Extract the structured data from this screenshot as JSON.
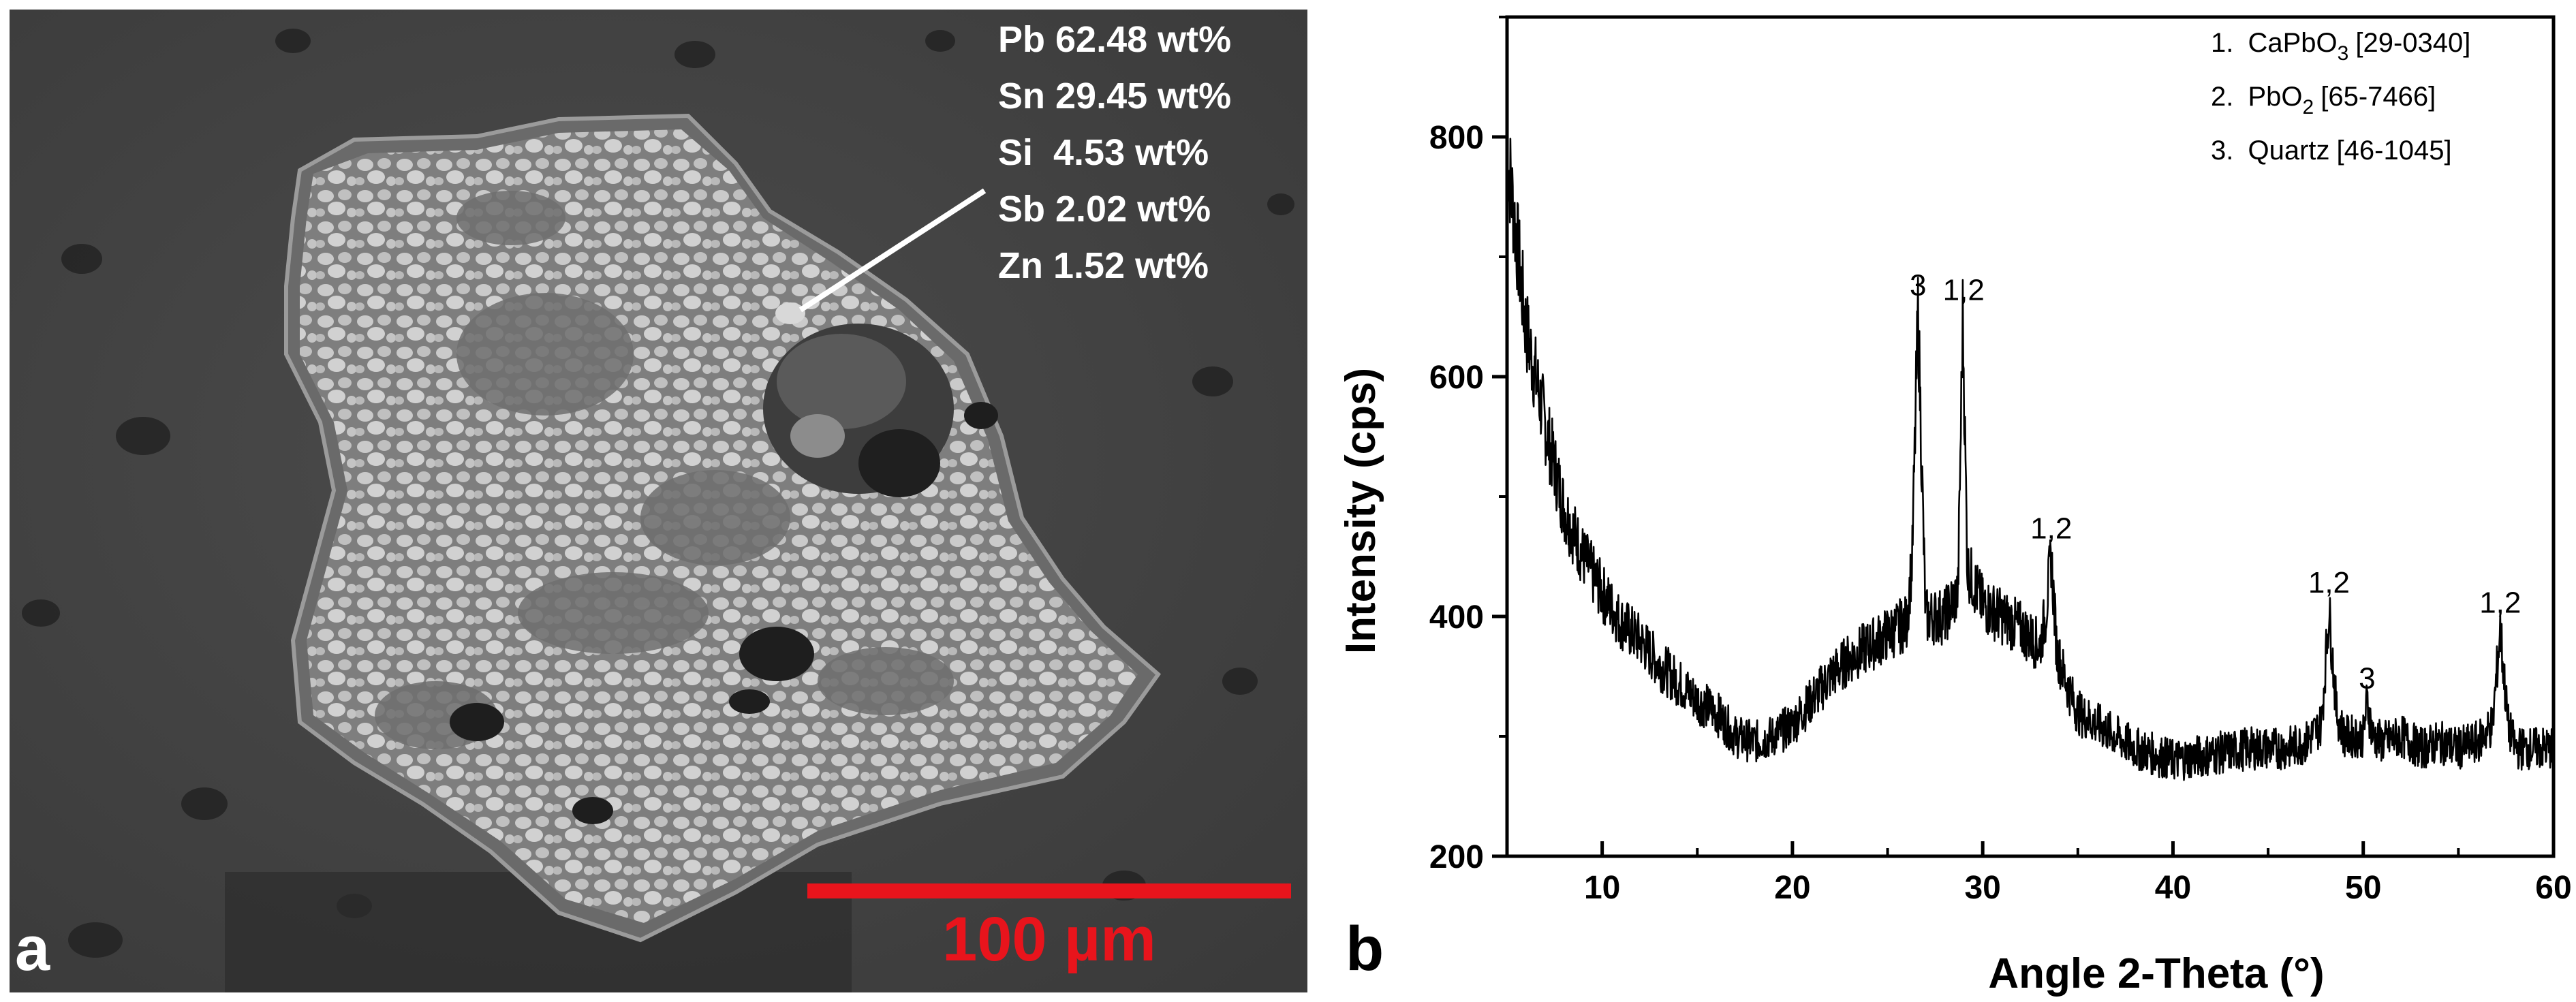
{
  "panel_a": {
    "letter": "a",
    "composition": [
      {
        "text": "Pb 62.48 wt%"
      },
      {
        "text": "Sn 29.45 wt%"
      },
      {
        "text": "Si  4.53 wt%"
      },
      {
        "text": "Sb 2.02 wt%"
      },
      {
        "text": "Zn 1.52 wt%"
      }
    ],
    "scale_bar_label": "100 µm",
    "scale_bar_color": "#e8141c"
  },
  "panel_b": {
    "letter": "b"
  },
  "chart_data": {
    "type": "line",
    "xlabel": "Angle 2-Theta (°)",
    "ylabel": "Intensity (cps)",
    "xlim": [
      5,
      60
    ],
    "ylim": [
      200,
      900
    ],
    "xticks": [
      10,
      20,
      30,
      40,
      50,
      60
    ],
    "yticks": [
      200,
      400,
      600,
      800
    ],
    "grid": false,
    "legend_position": "top-right",
    "legend": [
      {
        "number": "1.",
        "name": "CaPbO",
        "sub": "3",
        "ref": "[29-0340]"
      },
      {
        "number": "2.",
        "name": "PbO",
        "sub": "2",
        "ref": "[65-7466]"
      },
      {
        "number": "3.",
        "name": "Quartz",
        "sub": "",
        "ref": "[46-1045]"
      }
    ],
    "series": [
      {
        "x": [
          5,
          6,
          7,
          8,
          9,
          10,
          11,
          12,
          13,
          14,
          15,
          16,
          17,
          18,
          19,
          20,
          21,
          22,
          23,
          24,
          25,
          26,
          26.3,
          26.6,
          26.9,
          27,
          28,
          28.7,
          28.95,
          29.2,
          30,
          31,
          32,
          33,
          33.3,
          33.6,
          33.9,
          34.5,
          35,
          36,
          37,
          38,
          39,
          40,
          42,
          44,
          46,
          47,
          47.8,
          48.2,
          48.6,
          49,
          50,
          50.2,
          50.5,
          51,
          52,
          53,
          54,
          55,
          56,
          56.8,
          57.2,
          57.6,
          58,
          59,
          60
        ],
        "y": [
          790,
          640,
          560,
          490,
          450,
          420,
          395,
          380,
          360,
          345,
          330,
          320,
          300,
          295,
          300,
          310,
          330,
          350,
          365,
          375,
          385,
          395,
          450,
          655,
          460,
          400,
          400,
          420,
          650,
          440,
          410,
          400,
          390,
          375,
          400,
          450,
          370,
          340,
          320,
          310,
          300,
          290,
          285,
          280,
          285,
          290,
          290,
          295,
          310,
          405,
          320,
          300,
          300,
          330,
          300,
          295,
          300,
          290,
          295,
          290,
          295,
          310,
          390,
          310,
          290,
          290,
          290
        ]
      }
    ],
    "peak_labels": [
      {
        "label": "3",
        "x": 26.6,
        "y": 668
      },
      {
        "label": "1,2",
        "x": 29.0,
        "y": 664
      },
      {
        "label": "1,2",
        "x": 33.6,
        "y": 465
      },
      {
        "label": "1,2",
        "x": 48.2,
        "y": 420
      },
      {
        "label": "3",
        "x": 50.2,
        "y": 340
      },
      {
        "label": "1,2",
        "x": 57.2,
        "y": 403
      }
    ]
  }
}
